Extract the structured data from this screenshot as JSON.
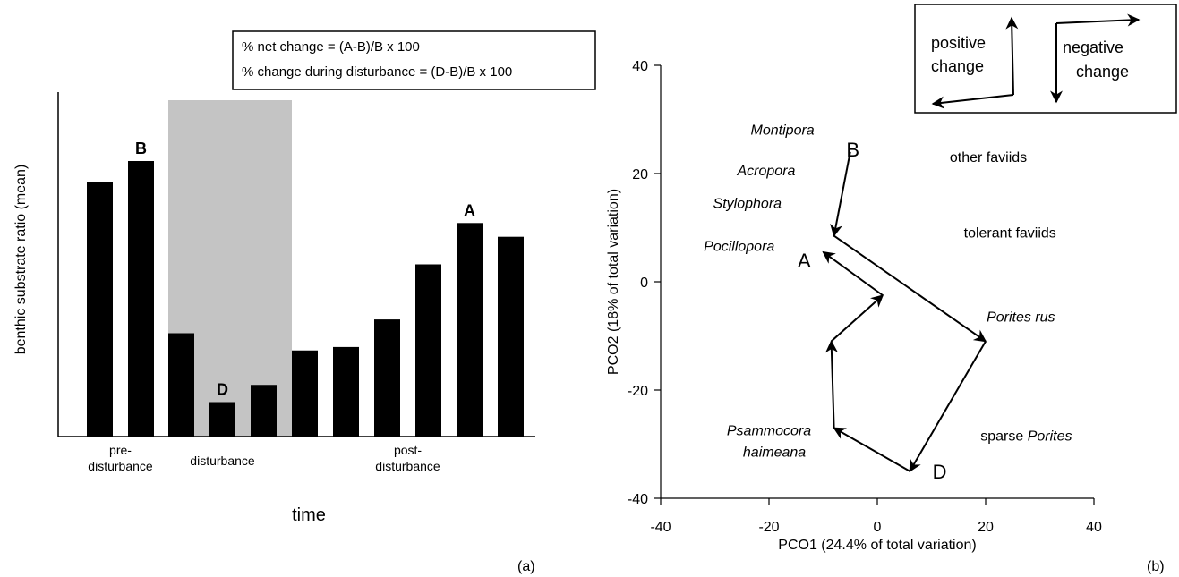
{
  "chart_data": [
    {
      "type": "bar",
      "panel_label": "(a)",
      "ylabel": "benthic substrate ratio (mean)",
      "xlabel": "time",
      "formula_lines": [
        "% net change = (A-B)/B x 100",
        "% change during disturbance = (D-B)/B x 100"
      ],
      "phases": [
        {
          "label_lines": [
            "pre-",
            "disturbance"
          ],
          "bars": [
            0.74,
            0.8
          ]
        },
        {
          "label_lines": [
            "disturbance"
          ],
          "shaded": true,
          "bars": [
            0.3,
            0.1,
            0.15
          ]
        },
        {
          "label_lines": [
            "post-",
            "disturbance"
          ],
          "bars": [
            0.25,
            0.26,
            0.34,
            0.5,
            0.62,
            0.58
          ]
        }
      ],
      "bar_annotations": [
        {
          "text": "B",
          "phase": 0,
          "bar": 1
        },
        {
          "text": "D",
          "phase": 1,
          "bar": 1
        },
        {
          "text": "A",
          "phase": 2,
          "bar": 4
        }
      ]
    },
    {
      "type": "scatter",
      "panel_label": "(b)",
      "xlabel": "PCO1 (24.4% of total variation)",
      "ylabel": "PCO2 (18% of total variation)",
      "xlim": [
        -40,
        40
      ],
      "ylim": [
        -40,
        40
      ],
      "xticks": [
        "-40",
        "-20",
        "0",
        "20",
        "40"
      ],
      "yticks": [
        "-40",
        "-20",
        "0",
        "20",
        "40"
      ],
      "trajectory": [
        {
          "x": -5,
          "y": 24
        },
        {
          "x": -8,
          "y": 8.5
        },
        {
          "x": 20,
          "y": -11
        },
        {
          "x": 6,
          "y": -35
        },
        {
          "x": -8,
          "y": -27
        },
        {
          "x": -8.5,
          "y": -11
        },
        {
          "x": 1,
          "y": -2.5
        },
        {
          "x": -10,
          "y": 5.5
        }
      ],
      "point_labels": [
        {
          "text": "B",
          "x": -4.5,
          "y": 24.5
        },
        {
          "text": "A",
          "x": -13.5,
          "y": 4
        },
        {
          "text": "D",
          "x": 11.5,
          "y": -35
        }
      ],
      "taxa": [
        {
          "text": "Montipora",
          "x": -17.5,
          "y": 28,
          "italic": true
        },
        {
          "text": "Acropora",
          "x": -20.5,
          "y": 20.5,
          "italic": true
        },
        {
          "text": "Stylophora",
          "x": -24,
          "y": 14.5,
          "italic": true
        },
        {
          "text": "Pocillopora",
          "x": -25.5,
          "y": 6.5,
          "italic": true
        },
        {
          "text": "other faviids",
          "x": 20.5,
          "y": 23,
          "italic": false
        },
        {
          "text": "tolerant faviids",
          "x": 24.5,
          "y": 9,
          "italic": false
        },
        {
          "text": "Porites rus",
          "x": 26.5,
          "y": -6.5,
          "italic": true
        },
        {
          "text": "Psammocora",
          "x": -20,
          "y": -27.5,
          "italic": true
        },
        {
          "text": "haimeana",
          "x": -19,
          "y": -31.5,
          "italic": true
        }
      ],
      "sparse_label": {
        "prefix": "sparse ",
        "italic_part": "Porites",
        "x": 27.5,
        "y": -28.5
      },
      "legend": {
        "positive": [
          "positive",
          "change"
        ],
        "negative": [
          "negative",
          "change"
        ]
      }
    }
  ]
}
